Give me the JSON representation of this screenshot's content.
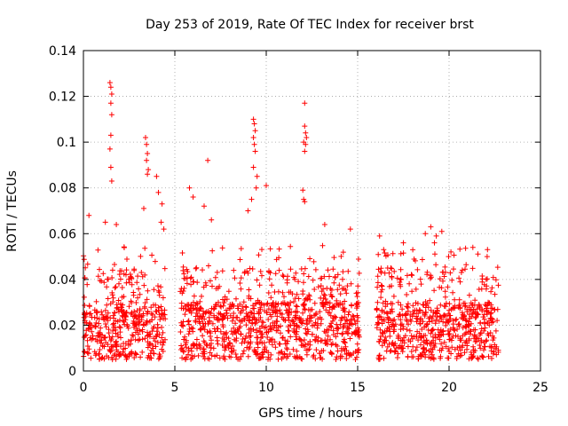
{
  "chart_data": {
    "type": "scatter",
    "title": "Day 253 of 2019, Rate Of TEC Index for receiver brst",
    "xlabel": "GPS time / hours",
    "ylabel": "ROTI / TECUs",
    "xlim": [
      0,
      25
    ],
    "ylim": [
      0,
      0.14
    ],
    "x_ticks": [
      "0",
      "5",
      "10",
      "15",
      "20",
      "25"
    ],
    "y_ticks": [
      "0",
      "0.02",
      "0.04",
      "0.06",
      "0.08",
      "0.1",
      "0.12",
      "0.14"
    ],
    "grid": true,
    "marker": "+",
    "color": "#ff0000",
    "series": [
      {
        "data_segments": [
          [
            0,
            4.5
          ],
          [
            5.3,
            15.1
          ],
          [
            16.0,
            22.7
          ]
        ],
        "outliers": [
          [
            0.3,
            0.068
          ],
          [
            1.45,
            0.126
          ],
          [
            1.5,
            0.124
          ],
          [
            1.55,
            0.121
          ],
          [
            1.5,
            0.117
          ],
          [
            1.55,
            0.112
          ],
          [
            1.5,
            0.103
          ],
          [
            1.45,
            0.097
          ],
          [
            1.5,
            0.089
          ],
          [
            1.55,
            0.083
          ],
          [
            1.2,
            0.065
          ],
          [
            1.8,
            0.064
          ],
          [
            3.4,
            0.102
          ],
          [
            3.45,
            0.099
          ],
          [
            3.5,
            0.095
          ],
          [
            3.45,
            0.092
          ],
          [
            3.55,
            0.088
          ],
          [
            3.5,
            0.086
          ],
          [
            3.3,
            0.071
          ],
          [
            4.0,
            0.085
          ],
          [
            4.1,
            0.078
          ],
          [
            4.3,
            0.073
          ],
          [
            4.25,
            0.065
          ],
          [
            4.4,
            0.062
          ],
          [
            5.8,
            0.08
          ],
          [
            6.0,
            0.076
          ],
          [
            6.8,
            0.092
          ],
          [
            7.0,
            0.066
          ],
          [
            6.6,
            0.072
          ],
          [
            9.3,
            0.11
          ],
          [
            9.35,
            0.108
          ],
          [
            9.4,
            0.105
          ],
          [
            9.3,
            0.102
          ],
          [
            9.35,
            0.099
          ],
          [
            9.4,
            0.096
          ],
          [
            9.3,
            0.089
          ],
          [
            9.5,
            0.085
          ],
          [
            9.45,
            0.08
          ],
          [
            9.2,
            0.075
          ],
          [
            9.0,
            0.07
          ],
          [
            10.0,
            0.081
          ],
          [
            12.1,
            0.117
          ],
          [
            12.1,
            0.107
          ],
          [
            12.15,
            0.104
          ],
          [
            12.2,
            0.102
          ],
          [
            12.05,
            0.1
          ],
          [
            12.15,
            0.099
          ],
          [
            12.1,
            0.096
          ],
          [
            12.0,
            0.079
          ],
          [
            12.05,
            0.075
          ],
          [
            12.1,
            0.074
          ],
          [
            13.2,
            0.064
          ],
          [
            14.6,
            0.062
          ],
          [
            16.2,
            0.059
          ],
          [
            17.5,
            0.056
          ],
          [
            18.7,
            0.06
          ],
          [
            19.0,
            0.063
          ],
          [
            19.3,
            0.059
          ],
          [
            19.6,
            0.061
          ],
          [
            19.2,
            0.056
          ],
          [
            20.1,
            0.052
          ],
          [
            21.3,
            0.054
          ],
          [
            22.1,
            0.053
          ]
        ]
      }
    ]
  }
}
